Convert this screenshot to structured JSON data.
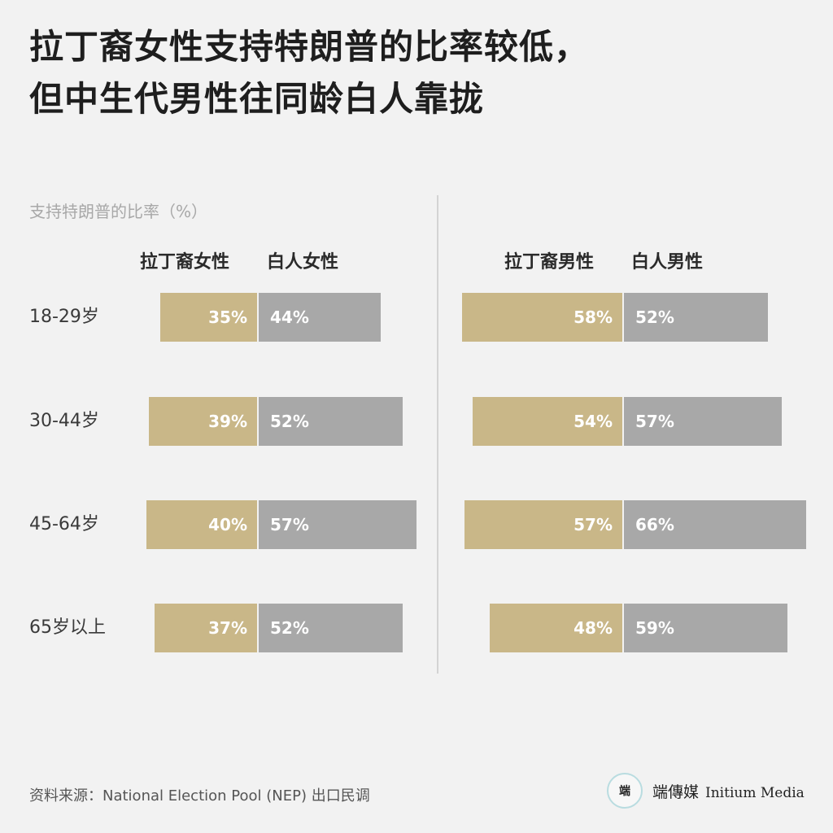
{
  "title": {
    "line1": "拉丁裔女性支持特朗普的比率较低，",
    "line2": "但中生代男性往同龄白人靠拢"
  },
  "chart_data": {
    "type": "bar",
    "subtitle": "支持特朗普的比率（%）",
    "categories": [
      "18-29岁",
      "30-44岁",
      "45-64岁",
      "65岁以上"
    ],
    "panels": [
      {
        "series": [
          {
            "name": "拉丁裔女性",
            "values": [
              35,
              39,
              40,
              37
            ],
            "labels": [
              "35%",
              "39%",
              "40%",
              "37%"
            ]
          },
          {
            "name": "白人女性",
            "values": [
              44,
              52,
              57,
              52
            ],
            "labels": [
              "44%",
              "52%",
              "57%",
              "52%"
            ]
          }
        ]
      },
      {
        "series": [
          {
            "name": "拉丁裔男性",
            "values": [
              58,
              54,
              57,
              48
            ],
            "labels": [
              "58%",
              "54%",
              "57%",
              "48%"
            ]
          },
          {
            "name": "白人男性",
            "values": [
              52,
              57,
              66,
              59
            ],
            "labels": [
              "52%",
              "57%",
              "66%",
              "59%"
            ]
          }
        ]
      }
    ],
    "colors": {
      "latino": "#c9b788",
      "white": "#a8a8a8"
    },
    "grid": false,
    "legend": "top"
  },
  "footer": {
    "source": "资料来源：National Election Pool (NEP) 出口民调",
    "logo_mark": "端",
    "logo_cn": "端傳媒",
    "logo_en": "Initium Media"
  }
}
